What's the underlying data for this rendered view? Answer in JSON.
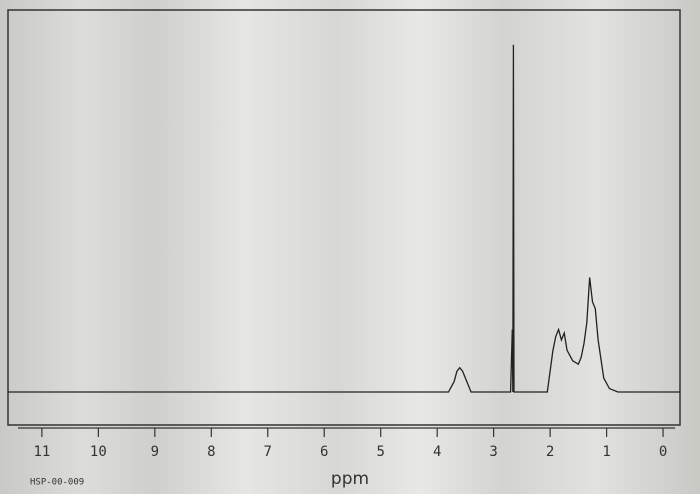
{
  "chart_data": {
    "type": "line",
    "footer": "HSP-00-009",
    "x_label": "ppm",
    "xlim": [
      11.6,
      -0.3
    ],
    "xticks": [
      11,
      10,
      9,
      8,
      7,
      6,
      5,
      4,
      3,
      2,
      1,
      0
    ],
    "ylim": [
      -9.5,
      110
    ],
    "color": "#222222",
    "x": [
      11.6,
      3.8,
      3.7,
      3.65,
      3.6,
      3.55,
      3.5,
      3.4,
      2.7,
      2.67,
      2.66,
      2.65,
      2.64,
      2.05,
      1.95,
      1.9,
      1.85,
      1.8,
      1.75,
      1.7,
      1.6,
      1.5,
      1.45,
      1.4,
      1.35,
      1.3,
      1.25,
      1.2,
      1.15,
      1.05,
      0.95,
      0.8,
      -0.3
    ],
    "y": [
      0,
      0,
      3,
      6,
      7,
      6,
      4,
      0,
      0,
      18,
      0,
      100,
      0,
      0,
      12,
      16,
      18,
      15,
      17,
      12,
      9,
      8,
      10,
      14,
      20,
      33,
      26,
      24,
      15,
      4,
      1,
      0,
      0
    ]
  }
}
